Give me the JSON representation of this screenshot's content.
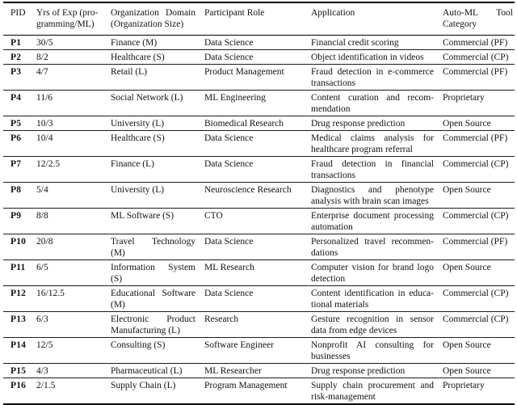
{
  "table": {
    "columns": [
      {
        "key": "pid",
        "label": "PID"
      },
      {
        "key": "exp",
        "label": "Yrs of Exp (pro­gramming/ML)"
      },
      {
        "key": "org",
        "label": "Organization Domain (Organization Size)"
      },
      {
        "key": "role",
        "label": "Participant Role"
      },
      {
        "key": "app",
        "label": "Application"
      },
      {
        "key": "tool",
        "label": "Auto-ML Tool Category"
      }
    ],
    "rows": [
      {
        "pid": "P1",
        "exp": "30/5",
        "org": "Finance (M)",
        "role": "Data Science",
        "app": "Financial credit scoring",
        "tool": "Commercial (PF)"
      },
      {
        "pid": "P2",
        "exp": "8/2",
        "org": "Healthcare (S)",
        "role": "Data Science",
        "app": "Object identification in videos",
        "tool": "Commercial (CP)"
      },
      {
        "pid": "P3",
        "exp": "4/7",
        "org": "Retail (L)",
        "role": "Product Management",
        "app": "Fraud detection in e-commerce transactions",
        "tool": "Commercial (PF)"
      },
      {
        "pid": "P4",
        "exp": "11/6",
        "org": "Social Network (L)",
        "role": "ML Engineering",
        "app": "Content curation and recom­mendation",
        "tool": "Proprietary"
      },
      {
        "pid": "P5",
        "exp": "10/3",
        "org": "University (L)",
        "role": "Biomedical Research",
        "app": "Drug response prediction",
        "tool": "Open Source"
      },
      {
        "pid": "P6",
        "exp": "10/4",
        "org": "Healthcare (S)",
        "role": "Data Science",
        "app": "Medical claims analysis for healthcare program referral",
        "tool": "Commercial (PF)"
      },
      {
        "pid": "P7",
        "exp": "12/2.5",
        "org": "Finance (L)",
        "role": "Data Science",
        "app": "Fraud detection in financial transactions",
        "tool": "Commercial (CP)"
      },
      {
        "pid": "P8",
        "exp": "5/4",
        "org": "University (L)",
        "role": "Neuroscience Research",
        "app": "Diagnostics and phenotype analysis with brain scan images",
        "tool": "Open Source"
      },
      {
        "pid": "P9",
        "exp": "8/8",
        "org": "ML Software (S)",
        "role": "CTO",
        "app": "Enterprise document process­ing automation",
        "tool": "Commercial (CP)"
      },
      {
        "pid": "P10",
        "exp": "20/8",
        "org": "Travel Technology (M)",
        "role": "Data Science",
        "app": "Personalized travel recommen­dations",
        "tool": "Commercial (PF)"
      },
      {
        "pid": "P11",
        "exp": "6/5",
        "org": "Information System (S)",
        "role": "ML Research",
        "app": "Computer vision for brand logo detection",
        "tool": "Open Source"
      },
      {
        "pid": "P12",
        "exp": "16/12.5",
        "org": "Educational Software (M)",
        "role": "Data Science",
        "app": "Content identification in educa­tional materials",
        "tool": "Commercial (CP)"
      },
      {
        "pid": "P13",
        "exp": "6/3",
        "org": "Electronic Product Manufacturing (L)",
        "role": "Research",
        "app": "Gesture recognition in sensor data from edge devices",
        "tool": "Commercial (CP)"
      },
      {
        "pid": "P14",
        "exp": "12/5",
        "org": "Consulting (S)",
        "role": "Software Engineer",
        "app": "Nonprofit AI consulting for businesses",
        "tool": "Open Source"
      },
      {
        "pid": "P15",
        "exp": "4/3",
        "org": "Pharmaceutical (L)",
        "role": "ML Researcher",
        "app": "Drug response prediction",
        "tool": "Open Source"
      },
      {
        "pid": "P16",
        "exp": "2/1.5",
        "org": "Supply Chain (L)",
        "role": "Program Management",
        "app": "Supply chain procurement and risk-management",
        "tool": "Proprietary"
      }
    ]
  }
}
